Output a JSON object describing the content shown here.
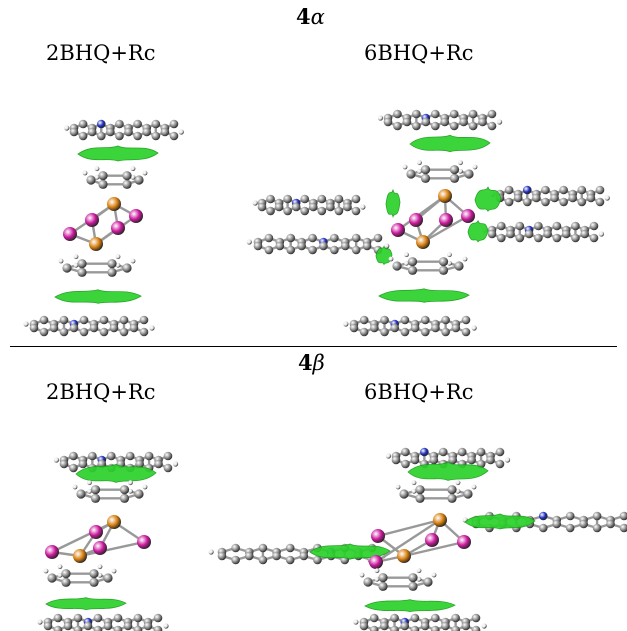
{
  "sections": [
    {
      "heading_number": "4",
      "heading_symbol": "α",
      "panels": [
        {
          "label": "2BHQ+Rc"
        },
        {
          "label": "6BHQ+Rc"
        }
      ]
    },
    {
      "heading_number": "4",
      "heading_symbol": "β",
      "panels": [
        {
          "label": "2BHQ+Rc"
        },
        {
          "label": "6BHQ+Rc"
        }
      ]
    }
  ],
  "colors": {
    "carbon": "#8a8a8a",
    "hydrogen": "#e6e6e6",
    "nitrogen": "#1f2fbf",
    "metal": "#d9800f",
    "halide": "#cc1a9e",
    "nci_surface": "#2bd12b"
  }
}
